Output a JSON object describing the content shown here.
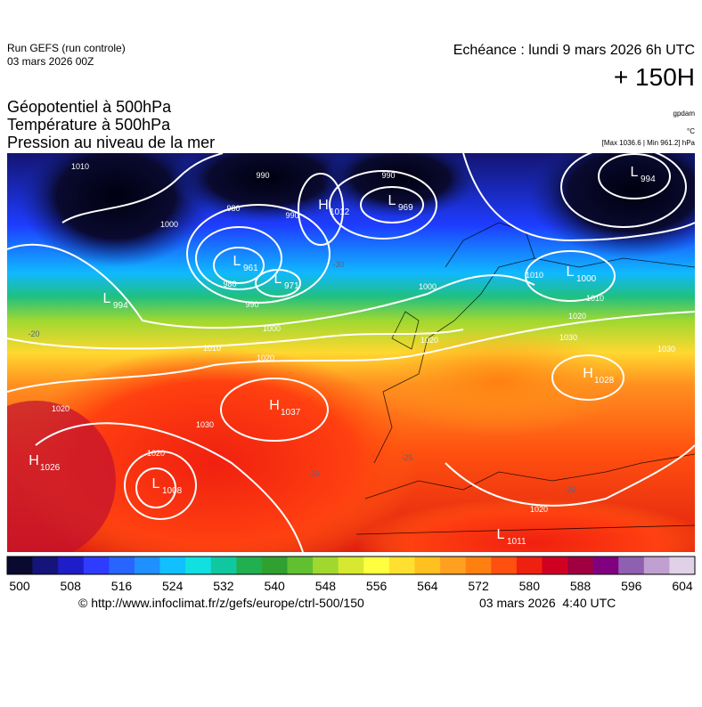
{
  "header": {
    "run": "Run GEFS (run controle)",
    "run_date": "03 mars 2026 00Z",
    "valid": "Echéance : lundi 9 mars 2026 6h UTC",
    "lead": "+ 150H"
  },
  "titles": [
    "Géopotentiel à 500hPa",
    "Température à 500hPa",
    "Pression au niveau de la mer"
  ],
  "units": {
    "geopotential": "gpdam",
    "temperature": "°C",
    "pressure": "[Max 1036.6 | Min 961.2] hPa"
  },
  "centers": [
    {
      "letter": "H",
      "value": 1012
    },
    {
      "letter": "L",
      "value": 969
    },
    {
      "letter": "L",
      "value": 961
    },
    {
      "letter": "L",
      "value": 971
    },
    {
      "letter": "L",
      "value": 994
    },
    {
      "letter": "L",
      "value": 1000
    },
    {
      "letter": "H",
      "value": 1026
    },
    {
      "letter": "H",
      "value": 1037
    },
    {
      "letter": "L",
      "value": 1008
    },
    {
      "letter": "H",
      "value": 1028
    },
    {
      "letter": "L",
      "value": 1011
    },
    {
      "letter": "L",
      "value": 994
    }
  ],
  "isobar_labels": [
    1010,
    990,
    1000,
    980,
    990,
    980,
    990,
    1000,
    1010,
    1020,
    1020,
    1030,
    1020,
    990,
    1000,
    1010,
    1010,
    1020,
    1030,
    1020,
    1030,
    1020
  ],
  "temperature_labels": [
    -20,
    -20,
    -20,
    -25,
    -30
  ],
  "colorbar": {
    "ticks": [
      500,
      508,
      516,
      524,
      532,
      540,
      548,
      556,
      564,
      572,
      580,
      588,
      596,
      604
    ],
    "colors": [
      "#0a0a30",
      "#14147a",
      "#1e1ec8",
      "#2e3cff",
      "#2864ff",
      "#1e90ff",
      "#10c0ff",
      "#10e0e0",
      "#10c8a0",
      "#20b050",
      "#30a030",
      "#60c030",
      "#a0d830",
      "#d8e830",
      "#ffff40",
      "#ffe030",
      "#ffc020",
      "#ffa020",
      "#ff8010",
      "#ff5010",
      "#f02010",
      "#d00020",
      "#a00040",
      "#800080",
      "#9060b0",
      "#c0a0d0",
      "#e0d0e8"
    ]
  },
  "footer": {
    "url": "© http://www.infoclimat.fr/z/gefs/europe/ctrl-500/150",
    "issued": "03 mars 2026  4:40 UTC"
  }
}
